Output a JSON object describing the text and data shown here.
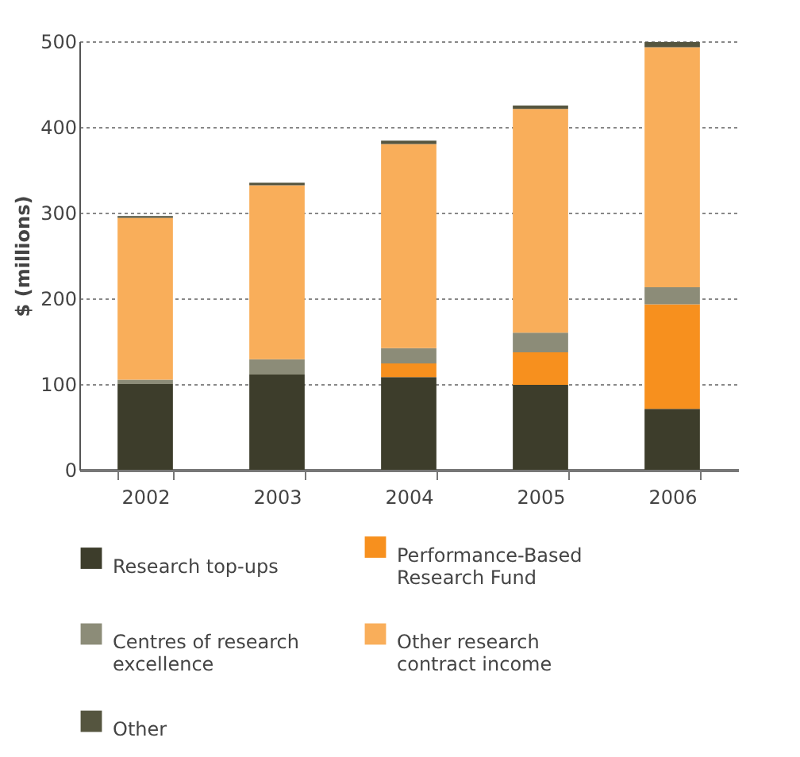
{
  "chart_data": {
    "type": "bar",
    "stacked": true,
    "categories": [
      "2002",
      "2003",
      "2004",
      "2005",
      "2006"
    ],
    "ylabel": "$ (millions)",
    "ylim": [
      0,
      500
    ],
    "yticks": [
      0,
      100,
      200,
      300,
      400,
      500
    ],
    "grid": "y",
    "legend": "bottom",
    "series": [
      {
        "name": "Research top-ups",
        "color": "#3d3d2b",
        "values": [
          100,
          111,
          108,
          99,
          71
        ]
      },
      {
        "name": "Performance-Based Research Fund",
        "color": "#f7901e",
        "values": [
          0,
          0,
          16,
          38,
          122
        ]
      },
      {
        "name": "Centres of research excellence",
        "color": "#8c8c78",
        "values": [
          5,
          18,
          18,
          23,
          20
        ]
      },
      {
        "name": "Other research contract income",
        "color": "#f9ae5a",
        "values": [
          189,
          203,
          238,
          261,
          280
        ]
      },
      {
        "name": "Other",
        "color": "#55553f",
        "values": [
          2,
          3,
          4,
          4,
          6
        ]
      }
    ]
  }
}
